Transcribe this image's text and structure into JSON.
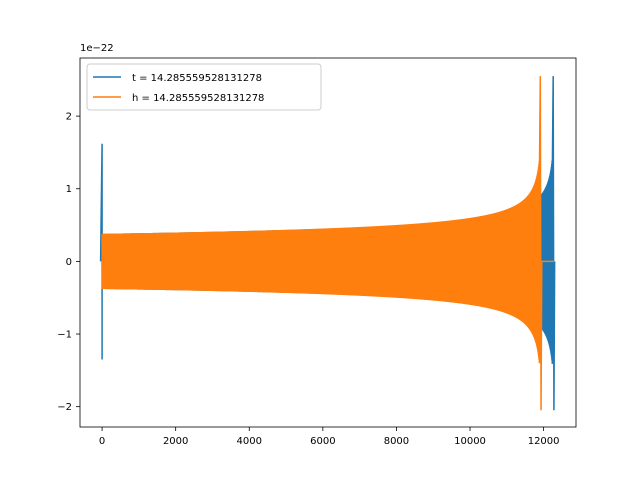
{
  "chart_data": {
    "type": "line",
    "title": "",
    "xlabel": "",
    "ylabel": "",
    "offset_text": "1e−22",
    "xlim": [
      -600,
      12880
    ],
    "ylim": [
      -2.28,
      2.8
    ],
    "grid": false,
    "legend_position": "top-left",
    "x_ticks": [
      0,
      2000,
      4000,
      6000,
      8000,
      10000,
      12000
    ],
    "x_tick_labels": [
      "0",
      "2000",
      "4000",
      "6000",
      "8000",
      "10000",
      "12000"
    ],
    "y_ticks": [
      -2,
      -1,
      0,
      1,
      2
    ],
    "y_tick_labels": [
      "−2",
      "−1",
      "0",
      "1",
      "2"
    ],
    "series": [
      {
        "name": "t = 14.285559528131278",
        "color": "#1f77b4",
        "description_points": {
          "spike_x": 0,
          "spike_range": [
            -1.35,
            1.62
          ],
          "start_amplitude": 0.38,
          "end_x": 12280,
          "peak": 2.55,
          "trough": -2.05
        }
      },
      {
        "name": "h = 14.285559528131278",
        "color": "#ff7f0e",
        "description_points": {
          "start_x": 0,
          "start_amplitude": 0.38,
          "end_x": 11930,
          "peak": 2.55,
          "trough": -2.05,
          "tail_value": 0
        }
      }
    ]
  }
}
